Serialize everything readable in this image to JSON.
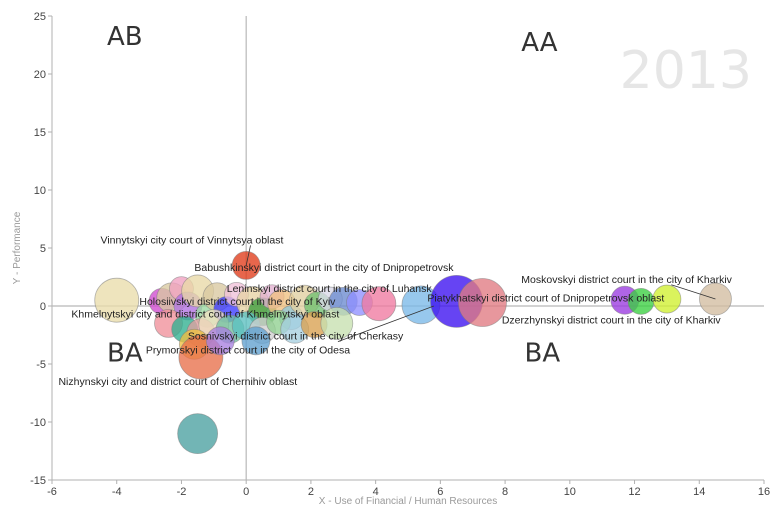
{
  "chart_data": {
    "type": "scatter",
    "year_label": "2013",
    "xlabel": "X - Use of Financial / Human Resources",
    "ylabel": "Y - Performance",
    "xlim": [
      -6,
      16
    ],
    "ylim": [
      -15,
      25
    ],
    "x_ticks": [
      "-6",
      "-4",
      "-2",
      "0",
      "2",
      "4",
      "6",
      "8",
      "10",
      "12",
      "14",
      "16"
    ],
    "y_ticks": [
      "25",
      "20",
      "15",
      "10",
      "5",
      "0",
      "-5",
      "-10",
      "-15"
    ],
    "grid": false,
    "quadrants": [
      {
        "label": "AB",
        "x": -4.3,
        "y": 22.5
      },
      {
        "label": "AA",
        "x": 8.5,
        "y": 22.0
      },
      {
        "label": "BA",
        "x": -4.3,
        "y": -4.8
      },
      {
        "label": "BA",
        "x": 8.6,
        "y": -4.8
      }
    ],
    "points": [
      {
        "x": -4.0,
        "y": 0.5,
        "r": 22,
        "color": "#e9dcaa"
      },
      {
        "x": -2.6,
        "y": 0.4,
        "r": 13,
        "color": "#d04ad0"
      },
      {
        "x": -2.3,
        "y": 0.7,
        "r": 15,
        "color": "#d9c9a0"
      },
      {
        "x": -2.0,
        "y": 1.5,
        "r": 12,
        "color": "#f0a0c0"
      },
      {
        "x": -1.8,
        "y": 0.0,
        "r": 14,
        "color": "#b070e0"
      },
      {
        "x": -1.5,
        "y": 1.3,
        "r": 16,
        "color": "#e8d8a6"
      },
      {
        "x": -1.2,
        "y": -0.8,
        "r": 12,
        "color": "#9ad8a0"
      },
      {
        "x": -0.9,
        "y": 0.8,
        "r": 14,
        "color": "#d8c8a0"
      },
      {
        "x": -0.6,
        "y": -0.3,
        "r": 13,
        "color": "#3a3aff"
      },
      {
        "x": -0.3,
        "y": 1.0,
        "r": 12,
        "color": "#f0c0d8"
      },
      {
        "x": 0.0,
        "y": 3.5,
        "r": 14,
        "color": "#e03b1a"
      },
      {
        "x": 0.2,
        "y": 0.3,
        "r": 16,
        "color": "#e6d4a4"
      },
      {
        "x": 0.5,
        "y": -0.5,
        "r": 14,
        "color": "#3c9c3c"
      },
      {
        "x": 0.8,
        "y": 0.8,
        "r": 12,
        "color": "#e2b0d0"
      },
      {
        "x": 1.1,
        "y": 0.2,
        "r": 14,
        "color": "#f0c080"
      },
      {
        "x": 1.4,
        "y": -1.0,
        "r": 12,
        "color": "#90c8d8"
      },
      {
        "x": 1.8,
        "y": 0.5,
        "r": 15,
        "color": "#e0d0a0"
      },
      {
        "x": 2.2,
        "y": 0.1,
        "r": 13,
        "color": "#70c070"
      },
      {
        "x": 2.6,
        "y": 0.6,
        "r": 12,
        "color": "#d8d8e8"
      },
      {
        "x": 3.0,
        "y": 0.4,
        "r": 14,
        "color": "#6a8ad0"
      },
      {
        "x": 3.5,
        "y": 0.3,
        "r": 13,
        "color": "#9090ff"
      },
      {
        "x": 4.1,
        "y": 0.2,
        "r": 17,
        "color": "#f07aa0"
      },
      {
        "x": 5.4,
        "y": 0.1,
        "r": 19,
        "color": "#7ab8e8"
      },
      {
        "x": 6.5,
        "y": 0.4,
        "r": 26,
        "color": "#3b10f0"
      },
      {
        "x": 7.3,
        "y": 0.3,
        "r": 24,
        "color": "#e07a82"
      },
      {
        "x": 11.7,
        "y": 0.5,
        "r": 14,
        "color": "#9a3ae0"
      },
      {
        "x": 12.2,
        "y": 0.4,
        "r": 13,
        "color": "#3ad040"
      },
      {
        "x": 13.0,
        "y": 0.6,
        "r": 14,
        "color": "#d0f030"
      },
      {
        "x": 14.5,
        "y": 0.6,
        "r": 16,
        "color": "#d2bda0"
      },
      {
        "x": -2.4,
        "y": -1.5,
        "r": 14,
        "color": "#f0909a"
      },
      {
        "x": -1.9,
        "y": -2.0,
        "r": 13,
        "color": "#30b090"
      },
      {
        "x": -1.4,
        "y": -2.3,
        "r": 14,
        "color": "#e0a0a0"
      },
      {
        "x": -1.0,
        "y": -1.6,
        "r": 15,
        "color": "#f0e0c0"
      },
      {
        "x": -0.5,
        "y": -2.0,
        "r": 14,
        "color": "#70c0a0"
      },
      {
        "x": 0.0,
        "y": -1.7,
        "r": 14,
        "color": "#5bc0c0"
      },
      {
        "x": 0.5,
        "y": -2.1,
        "r": 13,
        "color": "#d0d0d0"
      },
      {
        "x": 1.0,
        "y": -1.4,
        "r": 12,
        "color": "#90d090"
      },
      {
        "x": 1.5,
        "y": -2.0,
        "r": 14,
        "color": "#a6d0e0"
      },
      {
        "x": 2.1,
        "y": -1.6,
        "r": 13,
        "color": "#d8a050"
      },
      {
        "x": 2.8,
        "y": -1.5,
        "r": 16,
        "color": "#c7e0b0"
      },
      {
        "x": -1.6,
        "y": -3.3,
        "r": 15,
        "color": "#f0c040"
      },
      {
        "x": -1.4,
        "y": -4.4,
        "r": 22,
        "color": "#e8704a"
      },
      {
        "x": -0.8,
        "y": -3.0,
        "r": 14,
        "color": "#a880e0"
      },
      {
        "x": 0.3,
        "y": -3.0,
        "r": 14,
        "color": "#60a0d0"
      },
      {
        "x": -1.5,
        "y": -11.0,
        "r": 20,
        "color": "#4aa0a0"
      }
    ],
    "annotations": [
      {
        "text": "Vinnytskyi city court of Vinnytsya oblast",
        "x": -4.5,
        "y": 5.4,
        "anchor": "start",
        "target": [
          0.0,
          3.5
        ]
      },
      {
        "text": "Babushkinskyi district court in the city of Dnipropetrovsk",
        "x": -1.6,
        "y": 3.0,
        "anchor": "start",
        "target": null
      },
      {
        "text": "Leninskyi district court in the city of Luhansk",
        "x": -0.6,
        "y": 1.2,
        "anchor": "start",
        "target": null
      },
      {
        "text": "Moskovskyi district court in the city of Kharkiv",
        "x": 8.5,
        "y": 2.0,
        "anchor": "start",
        "target": [
          14.5,
          0.6
        ]
      },
      {
        "text": "Holosiivskyi district court in the city of Kyiv",
        "x": -3.3,
        "y": 0.1,
        "anchor": "start",
        "target": null
      },
      {
        "text": "Piatykhatskyi district court of Dnipropetrovsk oblast",
        "x": 5.6,
        "y": 0.4,
        "anchor": "start",
        "target": null
      },
      {
        "text": "Khmelnytskyi city and district court of Khmelnytskyi oblast",
        "x": -5.4,
        "y": -1.0,
        "anchor": "start",
        "target": null
      },
      {
        "text": "Dzerzhynskyi district court in the city of Kharkiv",
        "x": 7.9,
        "y": -1.5,
        "anchor": "start",
        "target": null
      },
      {
        "text": "Sosnivskyi district court in the city of Cherkasy",
        "x": -1.8,
        "y": -2.9,
        "anchor": "start",
        "target": [
          5.8,
          0.0
        ]
      },
      {
        "text": "Prymorskyi district court in the city of Odesa",
        "x": -3.1,
        "y": -4.1,
        "anchor": "start",
        "target": null
      },
      {
        "text": "Nizhynskyi city and district court of Chernihiv oblast",
        "x": -5.8,
        "y": -6.8,
        "anchor": "start",
        "target": null
      }
    ]
  }
}
